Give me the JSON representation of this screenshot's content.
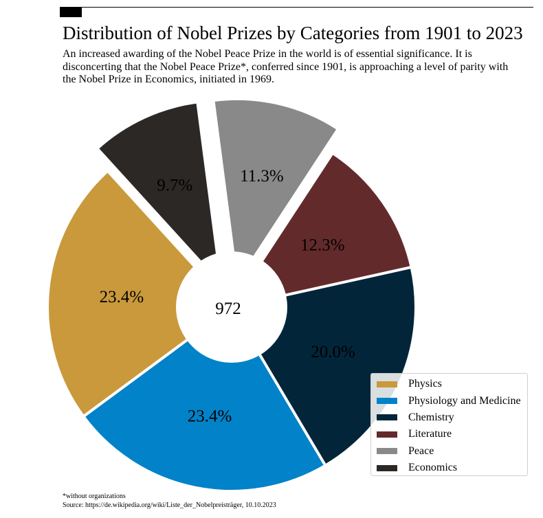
{
  "title": "Distribution of Nobel Prizes by Categories from 1901 to 2023",
  "subtitle": "An increased awarding of the Nobel Peace Prize in the world is of essential significance. It is disconcerting that the Nobel Peace Prize*, conferred since 1901, is approaching a level of parity with the Nobel Prize in Economics, initiated in 1969.",
  "footnote": "*without organizations",
  "source": "Source: https://de.wikipedia.org/wiki/Liste_der_Nobelpreisträger, 10.10.2023",
  "chart_data": {
    "type": "pie",
    "donut": true,
    "center_label": "972",
    "legend_placement": "bottom-right",
    "categories": [
      "Physics",
      "Physiology and Medicine",
      "Chemistry",
      "Literature",
      "Peace",
      "Economics"
    ],
    "values": [
      23.4,
      23.4,
      20.0,
      12.3,
      11.3,
      9.7
    ],
    "labels": [
      "23.4%",
      "23.4%",
      "20.0%",
      "12.3%",
      "11.3%",
      "9.7%"
    ],
    "exploded": [
      false,
      false,
      false,
      false,
      true,
      true
    ],
    "colors": [
      "#C9993C",
      "#0282C8",
      "#02253A",
      "#632A2C",
      "#898989",
      "#2C2825"
    ]
  }
}
